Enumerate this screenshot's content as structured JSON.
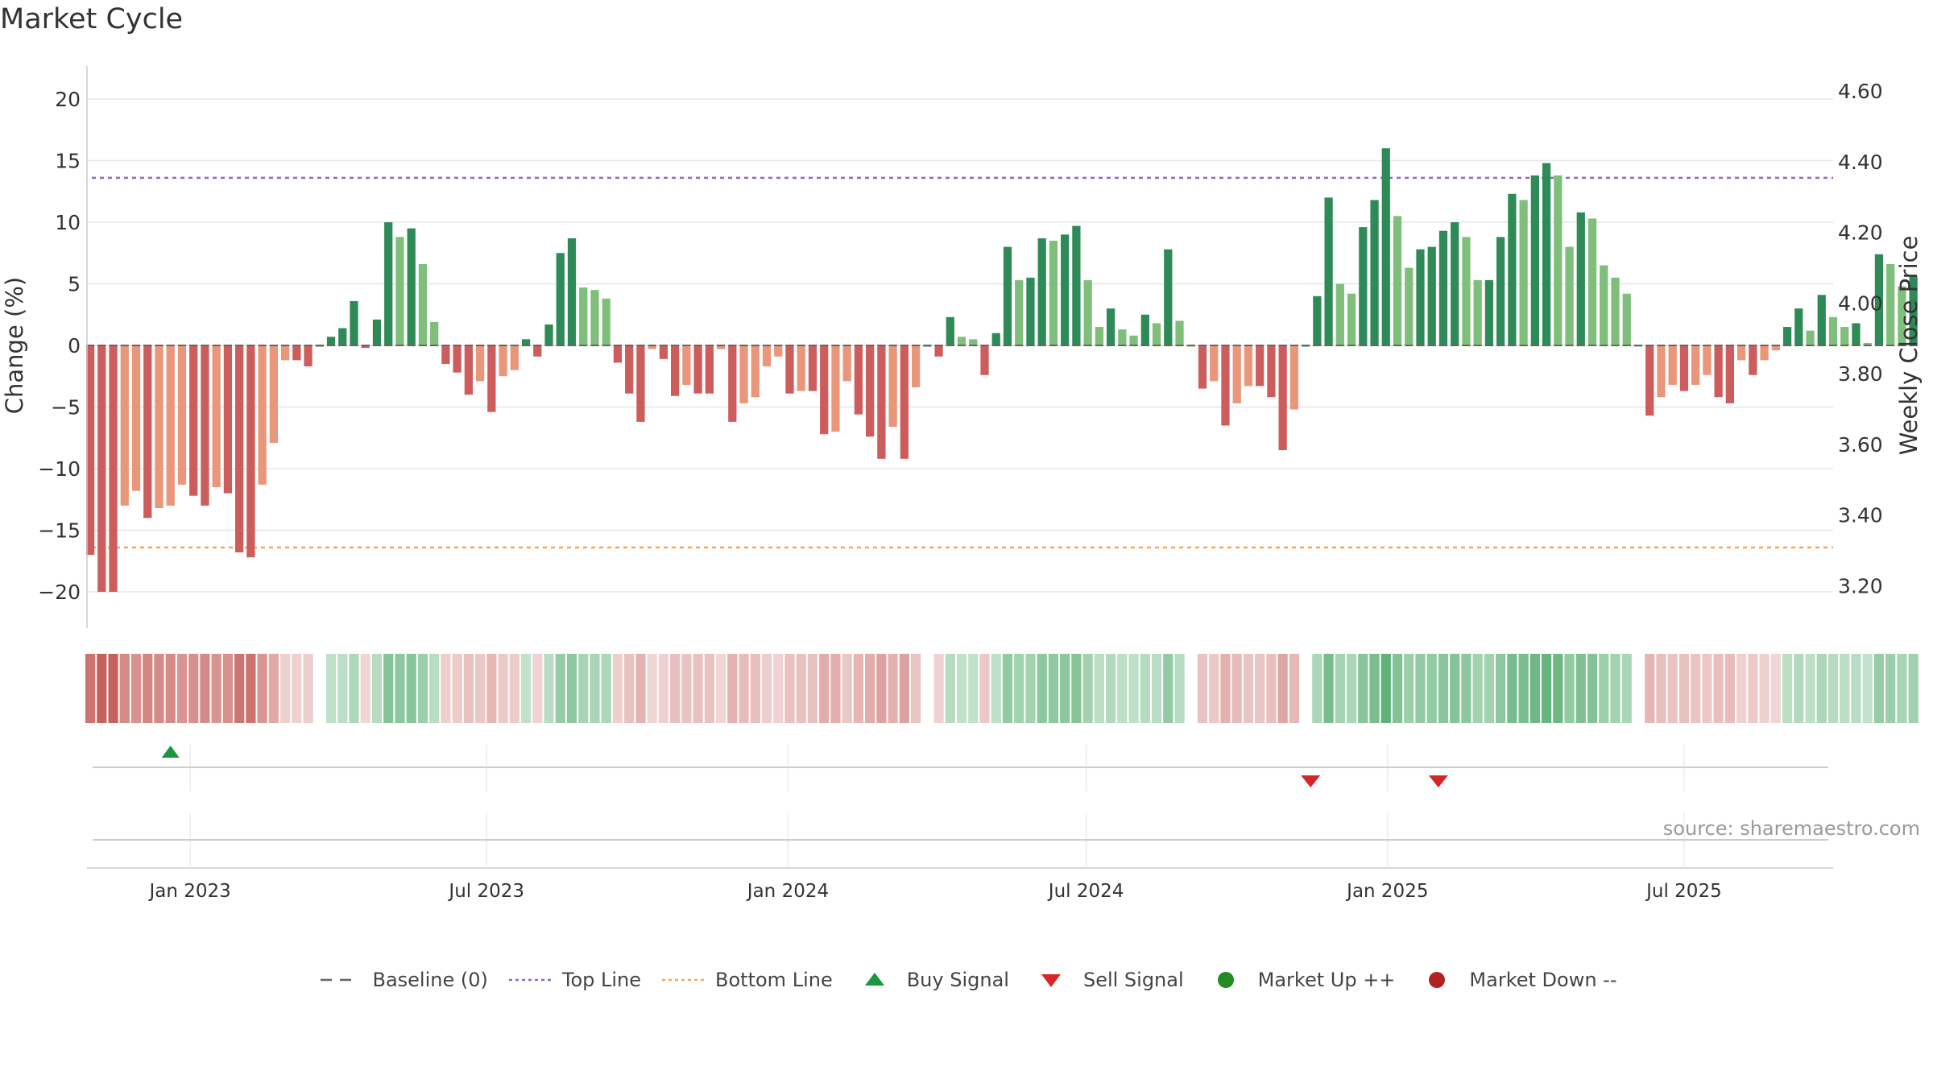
{
  "title": "Market Cycle",
  "source": "source: sharemaestro.com",
  "colors": {
    "up_strong": "#2e8b57",
    "up_light": "#7fbf7b",
    "down_strong": "#cd5c5c",
    "down_light": "#e9967a",
    "top_line": "#9467bd",
    "bottom_line": "#f4a460",
    "buy": "#1a9641",
    "sell": "#d62728",
    "market_up": "#228b22",
    "market_down": "#b22222",
    "baseline": "#666666"
  },
  "chart_data": {
    "type": "bar",
    "title": "Market Cycle",
    "ylabel": "Change (%)",
    "ylabel_right": "Weekly Close Price",
    "ylim": [
      -21.5,
      21.5
    ],
    "ylim_right": [
      3.13,
      4.63
    ],
    "yticks": [
      "20",
      "15",
      "10",
      "5",
      "0",
      "−5",
      "−10",
      "−15",
      "−20"
    ],
    "yticks_right": [
      "4.60",
      "4.40",
      "4.20",
      "4.00",
      "3.80",
      "3.60",
      "3.40",
      "3.20"
    ],
    "x_start": "2022-10-30",
    "x_end": "2025-09-30",
    "xtick_labels": [
      "Jan 2023",
      "Jul 2023",
      "Jan 2024",
      "Jul 2024",
      "Jan 2025",
      "Jul 2025"
    ],
    "xtick_dates": [
      "2023-01-01",
      "2023-07-01",
      "2024-01-01",
      "2024-07-01",
      "2025-01-01",
      "2025-07-01"
    ],
    "top_line": 13.6,
    "bottom_line": -16.4,
    "baseline": 0,
    "bar_start": "2022-11-01",
    "bar_interval_days": 7,
    "values": [
      -17,
      -20,
      -20,
      -13,
      -11.8,
      -14,
      -13.2,
      -13,
      -11.3,
      -12.2,
      -13,
      -11.5,
      -12,
      -16.8,
      -17.2,
      -11.3,
      -7.9,
      -1.2,
      -1.2,
      -1.7,
      0,
      0.7,
      1.4,
      3.6,
      -0.2,
      2.1,
      10,
      8.8,
      9.5,
      6.6,
      1.9,
      -1.5,
      -2.2,
      -4,
      -2.9,
      -5.4,
      -2.5,
      -2,
      0.5,
      -0.9,
      1.7,
      7.5,
      8.7,
      4.7,
      4.5,
      3.8,
      -1.4,
      -3.9,
      -6.2,
      -0.3,
      -1.1,
      -4.1,
      -3.2,
      -3.9,
      -3.9,
      -0.3,
      -6.2,
      -4.7,
      -4.2,
      -1.7,
      -0.9,
      -3.9,
      -3.7,
      -3.7,
      -7.2,
      -7,
      -2.9,
      -5.6,
      -7.4,
      -9.2,
      -6.6,
      -9.2,
      -3.4,
      0,
      -0.9,
      2.3,
      0.7,
      0.5,
      -2.4,
      1,
      8,
      5.3,
      5.5,
      8.7,
      8.5,
      9,
      9.7,
      5.3,
      1.5,
      3,
      1.3,
      0.8,
      2.5,
      1.8,
      7.8,
      2,
      0,
      -3.5,
      -2.9,
      -6.5,
      -4.7,
      -3.3,
      -3.3,
      -4.2,
      -8.5,
      -5.2,
      0,
      4,
      12,
      5,
      4.2,
      9.6,
      11.8,
      16,
      10.5,
      6.3,
      7.8,
      8,
      9.3,
      10,
      8.8,
      5.3,
      5.3,
      8.8,
      12.3,
      11.8,
      13.8,
      14.8,
      13.8,
      8,
      10.8,
      10.3,
      6.5,
      5.5,
      4.2,
      0,
      -5.7,
      -4.2,
      -3.2,
      -3.7,
      -3.2,
      -2.4,
      -4.2,
      -4.7,
      -1.2,
      -2.4,
      -1.2,
      -0.4,
      1.5,
      3,
      1.2,
      4.1,
      2.3,
      1.5,
      1.8,
      0.2,
      7.4,
      6.6,
      4.8,
      5.6
    ],
    "buy_signals": [
      "2022-12-20"
    ],
    "sell_signals": [
      "2024-11-15",
      "2025-02-01"
    ],
    "legend": [
      "Baseline (0)",
      "Top Line",
      "Bottom Line",
      "Buy Signal",
      "Sell Signal",
      "Market Up ++",
      "Market Down --"
    ],
    "legend_placement": "bottom-center",
    "grid": true
  }
}
